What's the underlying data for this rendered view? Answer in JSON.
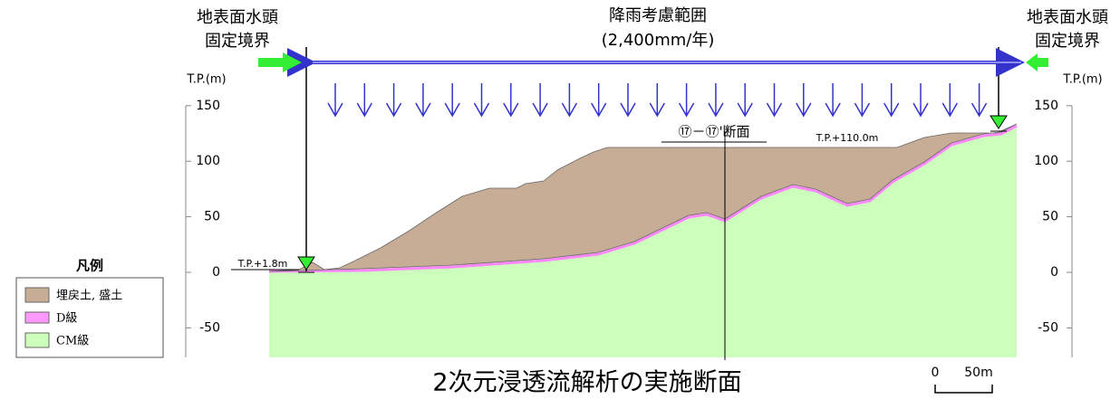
{
  "left_boundary": {
    "line1": "地表面水頭",
    "line2": "固定境界"
  },
  "right_boundary": {
    "line1": "地表面水頭",
    "line2": "固定境界"
  },
  "rainfall": {
    "line1": "降雨考慮範囲",
    "line2": "(2,400mm/年)"
  },
  "left_axis": {
    "unit": "T.P.(m)",
    "ticks": [
      150,
      100,
      50,
      0,
      -50
    ]
  },
  "right_axis": {
    "unit": "T.P.(m)",
    "ticks": [
      150,
      100,
      50,
      0,
      -50
    ]
  },
  "annotations": {
    "left_level": "T.P.+1.8m",
    "right_level": "T.P.+110.0m",
    "section": "⑰－⑰'断面"
  },
  "legend": {
    "title": "凡例",
    "items": [
      "埋戻土, 盛土",
      "D級",
      "CM級"
    ]
  },
  "title": "2次元浸透流解析の実施断面",
  "scale": {
    "start": "0",
    "end": "50m"
  }
}
